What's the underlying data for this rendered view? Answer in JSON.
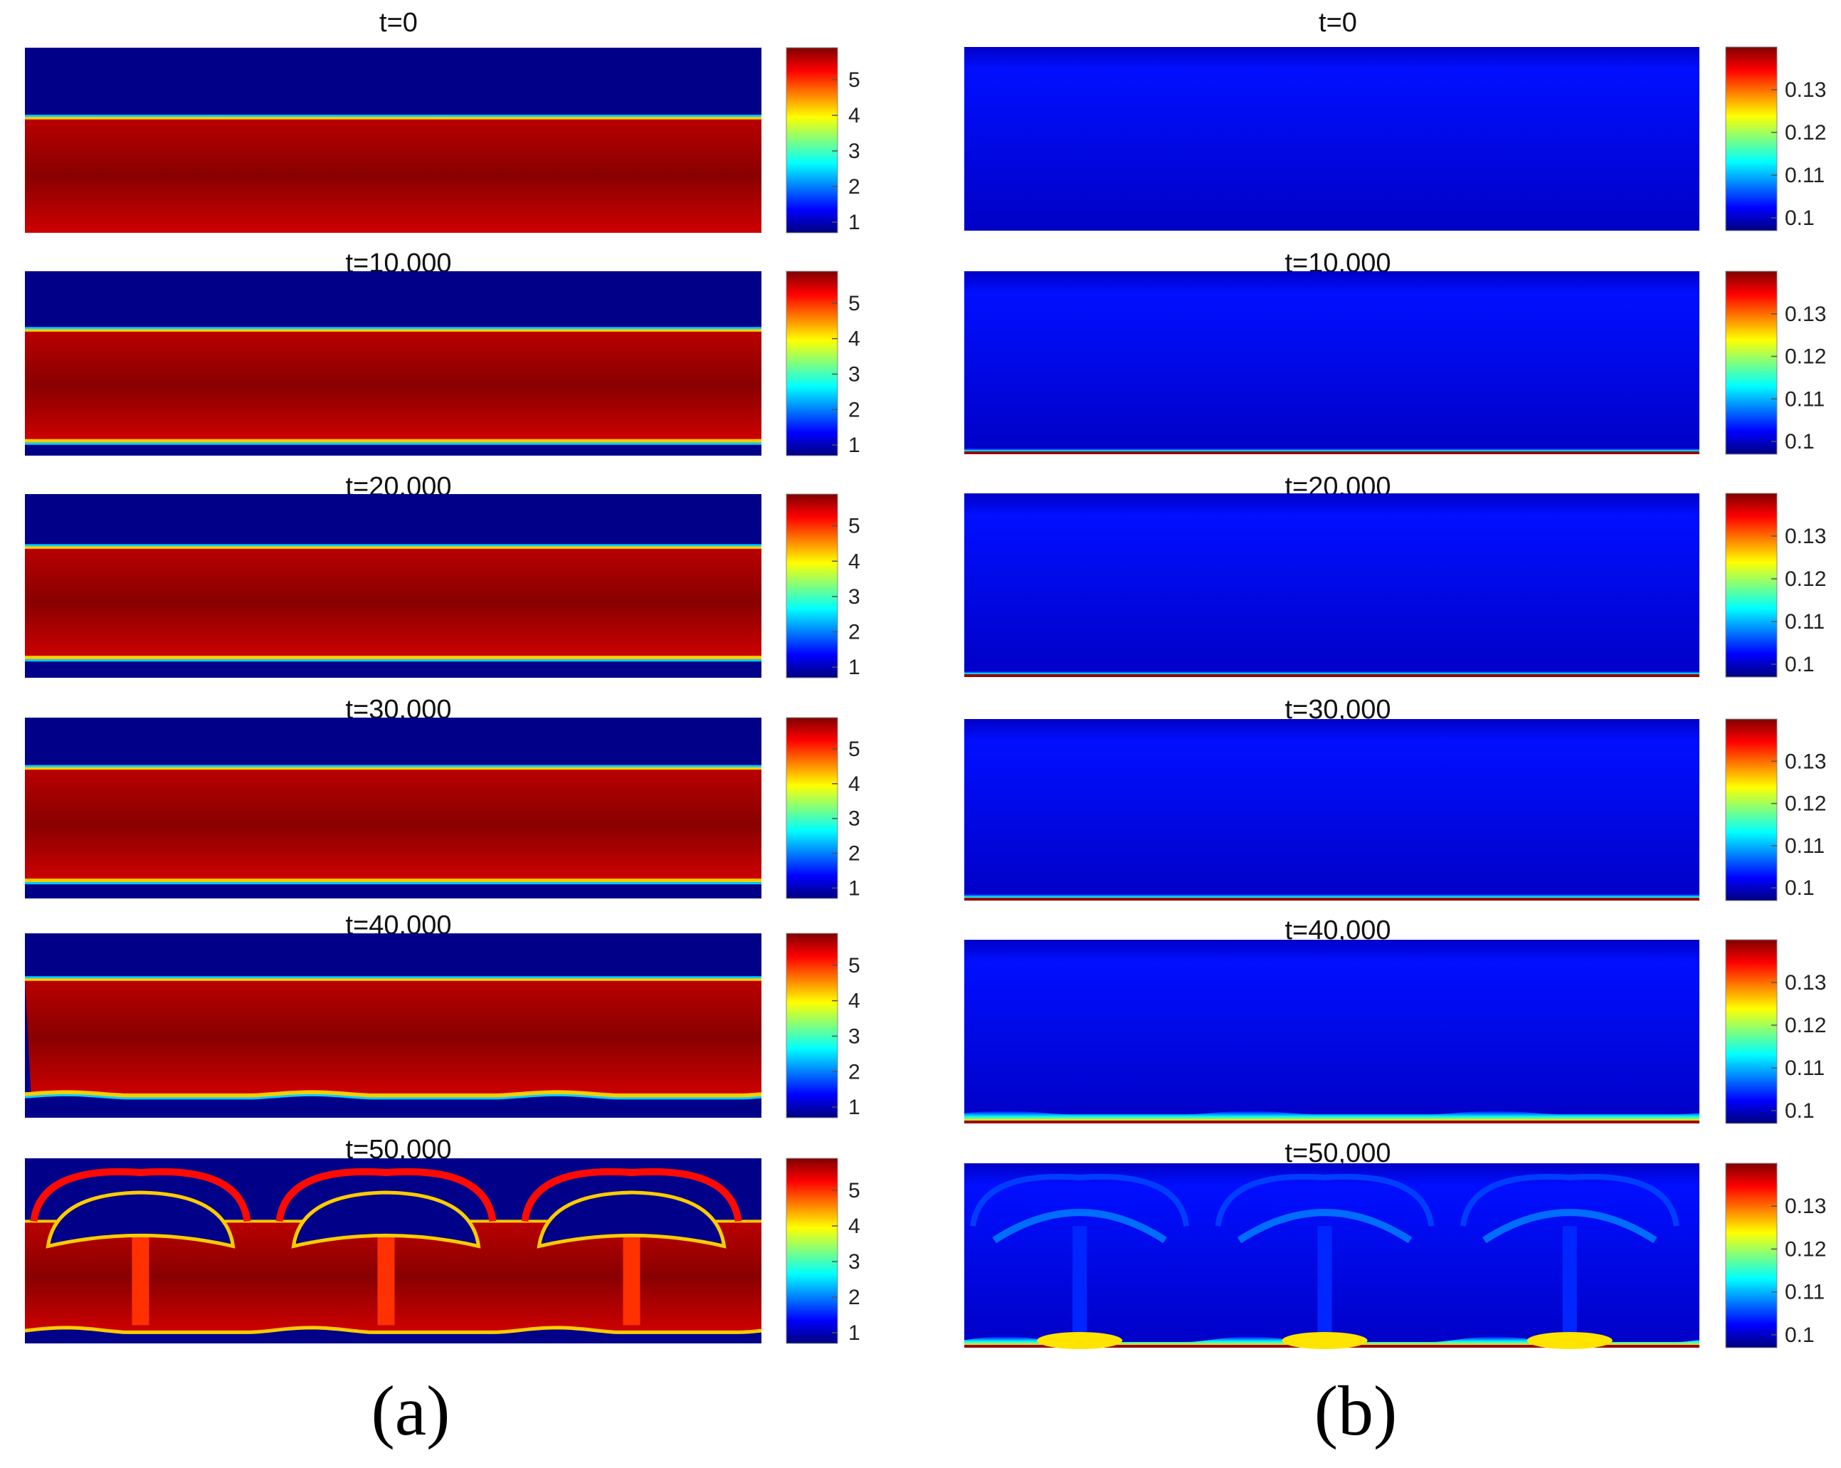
{
  "figure": {
    "colormap_stops": [
      "#00007f",
      "#0000ff",
      "#007fff",
      "#00ffff",
      "#7fff7f",
      "#ffff00",
      "#ff7f00",
      "#ff0000",
      "#7f0000"
    ],
    "label_a": "(a)",
    "label_b": "(b)"
  },
  "chart_data": [
    {
      "type": "heatmap",
      "panel": "(a)",
      "field_description": "density-like field; heavy band (~5.9) between light layers (~0.7)",
      "colorbar": {
        "min": 0.7,
        "max": 5.9,
        "ticks": [
          1,
          2,
          3,
          4,
          5
        ],
        "tick_labels": [
          "1",
          "2",
          "3",
          "4",
          "5"
        ]
      },
      "frames": [
        {
          "title": "t=0",
          "time": 0,
          "upper_interface": 0.62,
          "lower_interface": null,
          "wave_amplitude": 0,
          "mushrooms": false
        },
        {
          "title": "t=10,000",
          "time": 10000,
          "upper_interface": 0.68,
          "lower_interface": 0.08,
          "wave_amplitude": 0,
          "mushrooms": false
        },
        {
          "title": "t=20,000",
          "time": 20000,
          "upper_interface": 0.71,
          "lower_interface": 0.11,
          "wave_amplitude": 0,
          "mushrooms": false
        },
        {
          "title": "t=30,000",
          "time": 30000,
          "upper_interface": 0.72,
          "lower_interface": 0.1,
          "wave_amplitude": 0,
          "mushrooms": false
        },
        {
          "title": "t=40,000",
          "time": 40000,
          "upper_interface": 0.75,
          "lower_interface": 0.12,
          "wave_amplitude": 0.05,
          "mushrooms": false
        },
        {
          "title": "t=50,000",
          "time": 50000,
          "upper_interface": 0.66,
          "lower_interface": 0.06,
          "wave_amplitude": 0.1,
          "mushrooms": true,
          "mushroom_count": 3
        }
      ]
    },
    {
      "type": "heatmap",
      "panel": "(b)",
      "field_description": "concentration-like field; background ~0.1, enriched layer at bottom wall",
      "colorbar": {
        "min": 0.097,
        "max": 0.14,
        "ticks": [
          0.1,
          0.11,
          0.12,
          0.13
        ],
        "tick_labels": [
          "0.1",
          "0.11",
          "0.12",
          "0.13"
        ]
      },
      "frames": [
        {
          "title": "t=0",
          "time": 0,
          "bottom_layer_thickness": 0,
          "wave_amplitude": 0,
          "mushrooms": false
        },
        {
          "title": "t=10,000",
          "time": 10000,
          "bottom_layer_thickness": 0.04,
          "wave_amplitude": 0,
          "mushrooms": false
        },
        {
          "title": "t=20,000",
          "time": 20000,
          "bottom_layer_thickness": 0.06,
          "wave_amplitude": 0,
          "mushrooms": false
        },
        {
          "title": "t=30,000",
          "time": 30000,
          "bottom_layer_thickness": 0.07,
          "wave_amplitude": 0,
          "mushrooms": false
        },
        {
          "title": "t=40,000",
          "time": 40000,
          "bottom_layer_thickness": 0.1,
          "wave_amplitude": 0.03,
          "mushrooms": false
        },
        {
          "title": "t=50,000",
          "time": 50000,
          "bottom_layer_thickness": 0.04,
          "wave_amplitude": 0.05,
          "mushrooms": true,
          "mushroom_count": 3
        }
      ]
    }
  ]
}
